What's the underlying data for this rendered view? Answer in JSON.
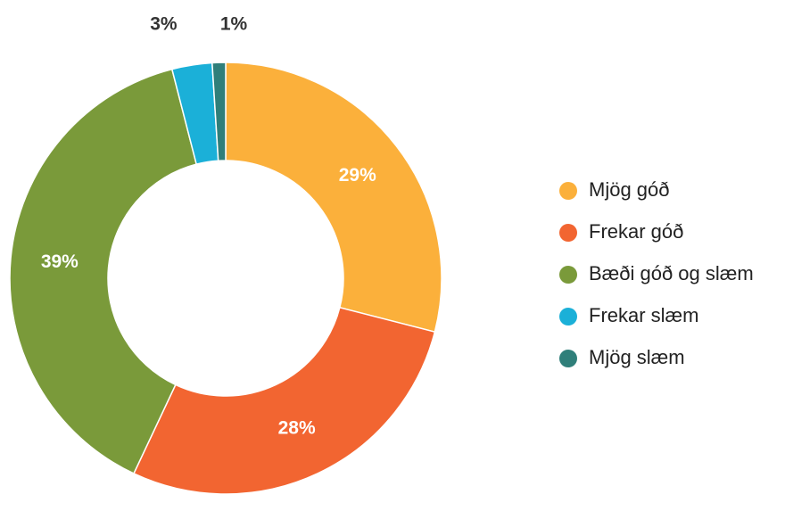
{
  "chart_data": {
    "type": "donut",
    "categories": [
      "Mjög góð",
      "Frekar góð",
      "Bæði góð og slæm",
      "Frekar slæm",
      "Mjög slæm"
    ],
    "values": [
      29,
      28,
      39,
      3,
      1
    ],
    "value_labels": [
      "29%",
      "28%",
      "39%",
      "3%",
      "1%"
    ],
    "colors": [
      "#fbb03b",
      "#f26531",
      "#7a9a3a",
      "#1bb0d8",
      "#2f7f7a"
    ],
    "legend": "right"
  }
}
